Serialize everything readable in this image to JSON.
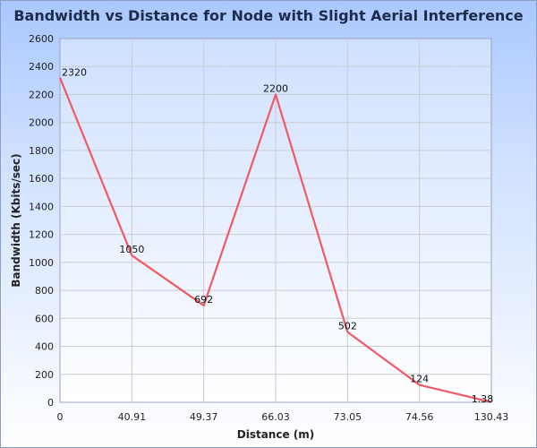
{
  "chart_data": {
    "type": "line",
    "title": "Bandwidth vs Distance for Node with Slight Aerial Interference",
    "xlabel": "Distance (m)",
    "ylabel": "Bandwidth (Kbits/sec)",
    "categories": [
      "0",
      "40.91",
      "49.37",
      "66.03",
      "73.05",
      "74.56",
      "130.43"
    ],
    "series": [
      {
        "values": [
          2320,
          1050,
          692,
          2200,
          502,
          124,
          1.38
        ],
        "labels": [
          "2320",
          "1050",
          "692",
          "2200",
          "502",
          "124",
          "1.38"
        ],
        "color": "#f05a63"
      }
    ],
    "ylim": [
      0,
      2600
    ],
    "yticks": [
      0,
      200,
      400,
      600,
      800,
      1000,
      1200,
      1400,
      1600,
      1800,
      2000,
      2200,
      2400,
      2600
    ],
    "grid": true,
    "legend": "none"
  }
}
